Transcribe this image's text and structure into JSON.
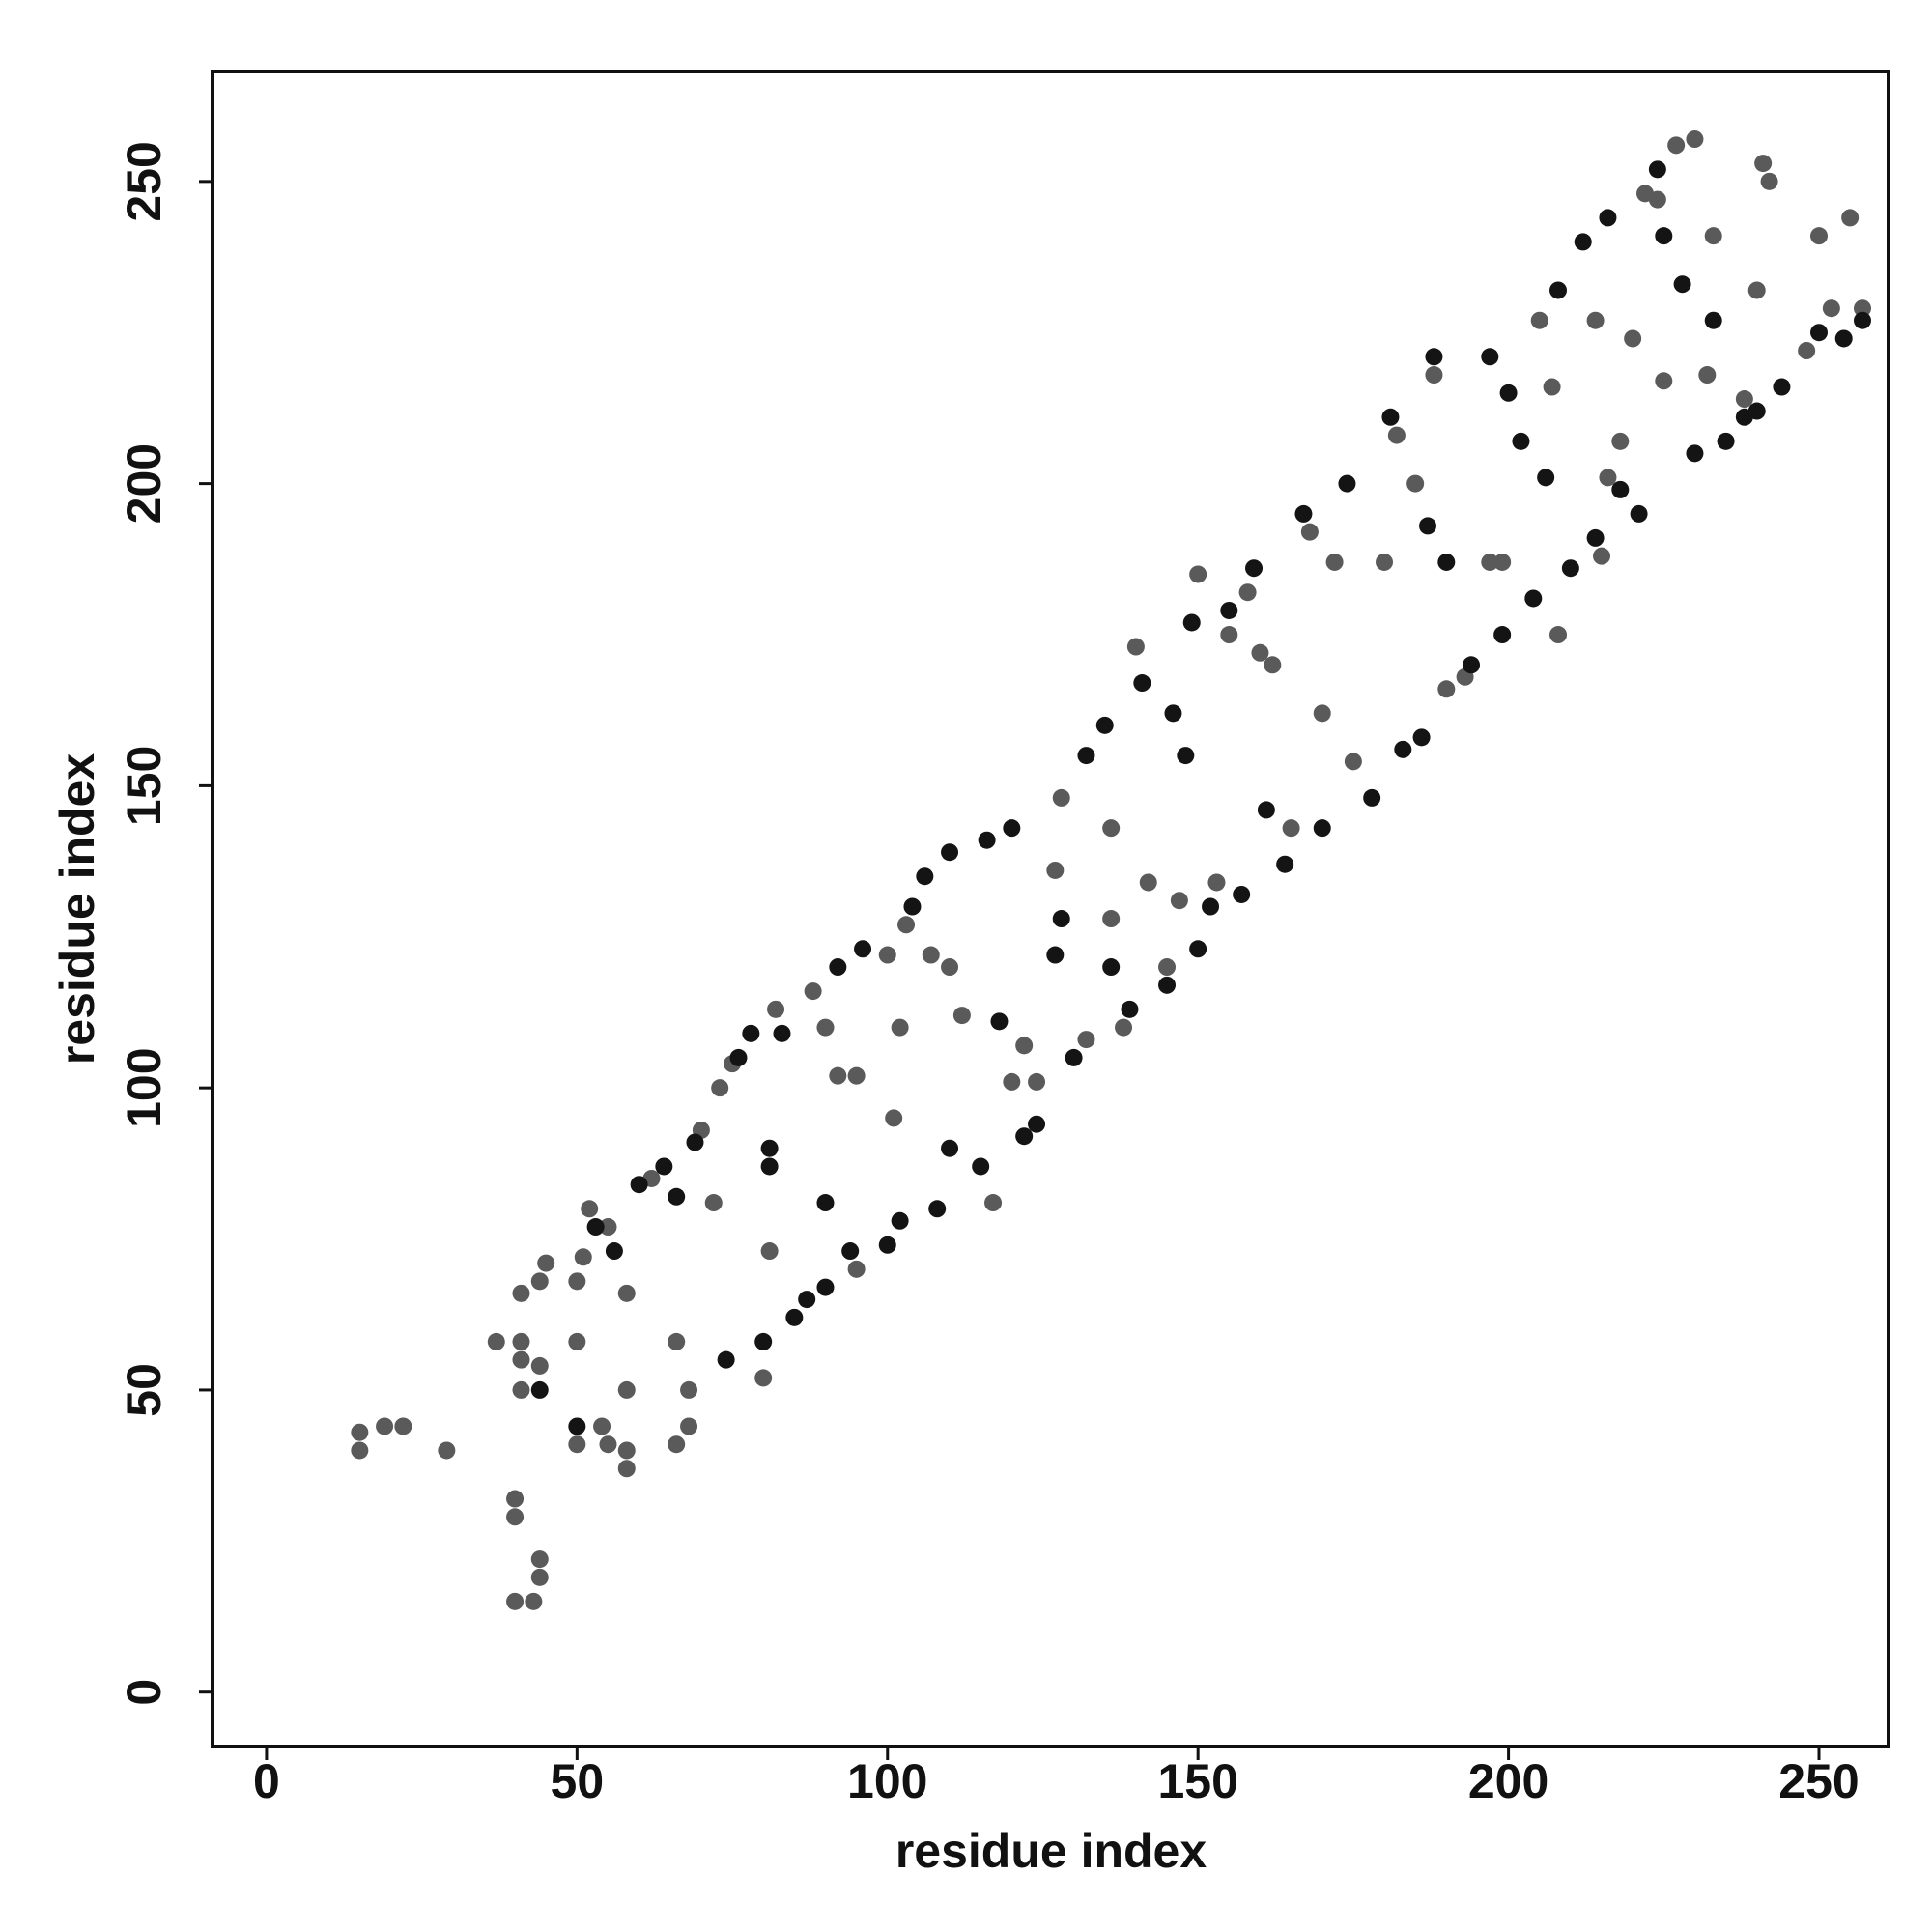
{
  "chart_data": {
    "type": "scatter",
    "xlabel": "residue index",
    "ylabel": "residue index",
    "xlim": [
      -8.7,
      261.2
    ],
    "ylim": [
      -9,
      268.2
    ],
    "xticks": [
      0,
      50,
      100,
      150,
      200,
      250
    ],
    "yticks": [
      0,
      50,
      100,
      150,
      200,
      250
    ],
    "grid": false,
    "series": [
      {
        "color": "#5a5a5a",
        "x": [
          15,
          15,
          19,
          22,
          29,
          37,
          40,
          40,
          40,
          41,
          41,
          41,
          41,
          43,
          44,
          44,
          44,
          44,
          45,
          50,
          50,
          50,
          51,
          52,
          54,
          55,
          55,
          58,
          58,
          58,
          58,
          62,
          66,
          66,
          68,
          68,
          70,
          72,
          73,
          75,
          80,
          81,
          82,
          88,
          90,
          92,
          95,
          95,
          100,
          101,
          102,
          103,
          107,
          110,
          112,
          117,
          120,
          122,
          124,
          127,
          128,
          132,
          136,
          136,
          138,
          140,
          142,
          145,
          147,
          150,
          153,
          155,
          158,
          160,
          162,
          165,
          168,
          170,
          172,
          175,
          180,
          182,
          185,
          188,
          190,
          193,
          197,
          199,
          205,
          207,
          208,
          214,
          215,
          216,
          218,
          220,
          222,
          224,
          225,
          227,
          230,
          232,
          233,
          238,
          240,
          241,
          242,
          248,
          250,
          252,
          255,
          257
        ],
        "values": [
          40,
          43,
          44,
          44,
          40,
          58,
          15,
          29,
          32,
          66,
          58,
          50,
          55,
          15,
          19,
          22,
          54,
          68,
          71,
          41,
          58,
          68,
          72,
          80,
          44,
          41,
          77,
          37,
          40,
          50,
          66,
          85,
          41,
          58,
          44,
          50,
          93,
          81,
          100,
          104,
          52,
          73,
          113,
          116,
          110,
          102,
          102,
          70,
          122,
          95,
          110,
          127,
          122,
          120,
          112,
          81,
          101,
          107,
          101,
          136,
          148,
          108,
          128,
          143,
          110,
          173,
          134,
          120,
          131,
          185,
          134,
          175,
          182,
          172,
          170,
          143,
          192,
          162,
          187,
          154,
          187,
          208,
          200,
          218,
          166,
          168,
          187,
          187,
          227,
          216,
          175,
          227,
          188,
          201,
          207,
          224,
          248,
          247,
          217,
          256,
          257,
          218,
          241,
          214,
          232,
          253,
          250,
          222,
          241,
          229,
          244,
          229
        ]
      },
      {
        "color": "#141414",
        "x": [
          44,
          50,
          53,
          56,
          60,
          64,
          66,
          69,
          74,
          76,
          78,
          80,
          81,
          81,
          83,
          85,
          87,
          90,
          90,
          92,
          94,
          96,
          100,
          102,
          104,
          106,
          108,
          110,
          110,
          115,
          116,
          118,
          120,
          122,
          124,
          127,
          128,
          130,
          132,
          135,
          136,
          139,
          141,
          145,
          146,
          148,
          149,
          150,
          152,
          155,
          157,
          159,
          161,
          164,
          167,
          170,
          174,
          178,
          181,
          183,
          186,
          187,
          188,
          190,
          194,
          197,
          199,
          200,
          202,
          204,
          206,
          208,
          210,
          212,
          214,
          216,
          218,
          221,
          224,
          225,
          228,
          230,
          233,
          235,
          238,
          240,
          244,
          250,
          254,
          257
        ],
        "values": [
          50,
          44,
          77,
          73,
          84,
          87,
          82,
          91,
          55,
          105,
          109,
          58,
          87,
          90,
          109,
          62,
          65,
          81,
          67,
          120,
          73,
          123,
          74,
          78,
          130,
          135,
          80,
          90,
          139,
          87,
          141,
          111,
          143,
          92,
          94,
          122,
          128,
          105,
          155,
          160,
          120,
          113,
          167,
          117,
          162,
          155,
          177,
          123,
          130,
          179,
          132,
          186,
          146,
          137,
          195,
          143,
          200,
          148,
          211,
          156,
          158,
          193,
          221,
          187,
          170,
          221,
          175,
          215,
          207,
          181,
          201,
          232,
          186,
          240,
          191,
          244,
          199,
          195,
          252,
          241,
          233,
          205,
          227,
          207,
          211,
          212,
          216,
          225,
          224,
          227
        ]
      }
    ]
  }
}
